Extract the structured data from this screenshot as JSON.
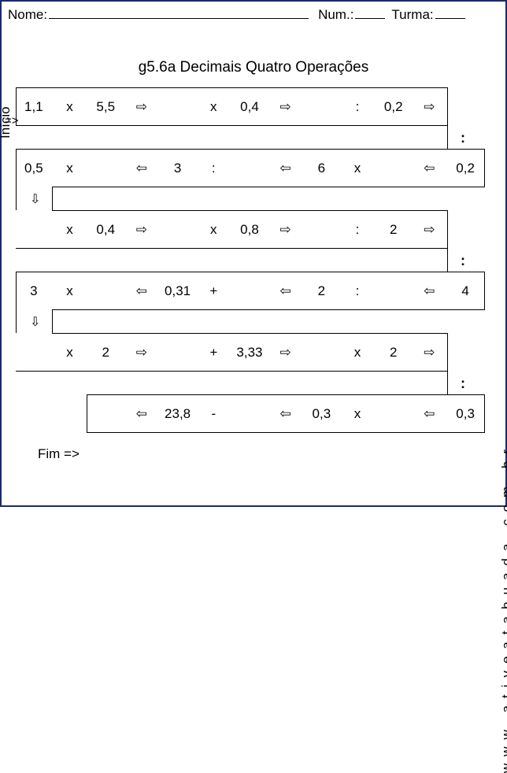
{
  "header": {
    "name_label": "Nome:",
    "num_label": "Num.:",
    "class_label": "Turma:"
  },
  "title": "g5.6a Decimais Quatro Operações",
  "labels": {
    "inicio": "Início",
    "start_arrow": "=>",
    "fim": "Fim =>",
    "site": "www.ativeatabuada.com.br"
  },
  "arrows": {
    "right": "⇨",
    "left": "⇦",
    "down": "⇩"
  },
  "connectors": {
    "colon": ":"
  },
  "rows": {
    "r1": [
      "1,1",
      "x",
      "5,5",
      "R",
      "",
      "x",
      "0,4",
      "R",
      "",
      ":",
      "0,2",
      "R",
      ""
    ],
    "r2": [
      "0,5",
      "x",
      "",
      "L",
      "3",
      ":",
      "",
      "L",
      "6",
      "x",
      "",
      "L",
      "0,2"
    ],
    "r3": [
      "",
      "x",
      "0,4",
      "R",
      "",
      "x",
      "0,8",
      "R",
      "",
      ":",
      "2",
      "R",
      ""
    ],
    "r4": [
      "3",
      "x",
      "",
      "L",
      "0,31",
      "+",
      "",
      "L",
      "2",
      ":",
      "",
      "L",
      "4"
    ],
    "r5": [
      "",
      "x",
      "2",
      "R",
      "",
      "+",
      "3,33",
      "R",
      "",
      "x",
      "2",
      "R",
      ""
    ],
    "r6": [
      "",
      "",
      "",
      "L",
      "23,8",
      "-",
      "",
      "L",
      "0,3",
      "x",
      "",
      "L",
      "0,3"
    ]
  },
  "colors": {
    "border": "#1a2a6c",
    "text": "#000000",
    "bg": "#ffffff",
    "line": "#000000"
  }
}
